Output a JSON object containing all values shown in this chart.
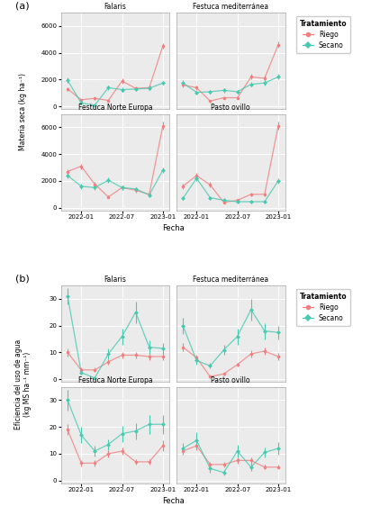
{
  "panel_a": {
    "ylabel": "Materia seca (kg ha⁻¹)",
    "xlabel": "Fecha",
    "subplots": [
      {
        "title": "Falaris",
        "riego_y": [
          1300,
          500,
          600,
          450,
          1900,
          1350,
          1400,
          4500
        ],
        "riego_err": [
          150,
          80,
          100,
          80,
          200,
          150,
          150,
          200
        ],
        "secano_y": [
          1950,
          250,
          100,
          1400,
          1250,
          1300,
          1350,
          1750
        ],
        "secano_err": [
          200,
          100,
          80,
          150,
          150,
          120,
          150,
          150
        ]
      },
      {
        "title": "Festuca mediterránea",
        "riego_y": [
          1600,
          1400,
          400,
          650,
          650,
          2200,
          2100,
          4600
        ],
        "riego_err": [
          200,
          150,
          80,
          100,
          100,
          200,
          200,
          250
        ],
        "secano_y": [
          1750,
          1050,
          1100,
          1200,
          1100,
          1650,
          1750,
          2200
        ],
        "secano_err": [
          180,
          120,
          120,
          150,
          130,
          170,
          180,
          200
        ]
      },
      {
        "title": "Festuca Norte Europa",
        "riego_y": [
          2700,
          3100,
          1750,
          800,
          1500,
          1300,
          1000,
          6100
        ],
        "riego_err": [
          200,
          200,
          150,
          100,
          150,
          150,
          120,
          300
        ],
        "secano_y": [
          2400,
          1600,
          1500,
          2050,
          1500,
          1400,
          950,
          2800
        ],
        "secano_err": [
          200,
          180,
          150,
          200,
          150,
          150,
          120,
          200
        ]
      },
      {
        "title": "Pasto ovillo",
        "riego_y": [
          1600,
          2400,
          1700,
          400,
          550,
          1000,
          1000,
          6100
        ],
        "riego_err": [
          180,
          200,
          200,
          80,
          100,
          150,
          150,
          300
        ],
        "secano_y": [
          700,
          2200,
          750,
          550,
          450,
          450,
          450,
          2000
        ],
        "secano_err": [
          120,
          200,
          130,
          100,
          80,
          80,
          80,
          200
        ]
      }
    ],
    "xtick_labels": [
      "2022-01",
      "2022-07",
      "2023-01"
    ],
    "xtick_positions": [
      1,
      4,
      7
    ],
    "ylim": [
      -200,
      7000
    ],
    "yticks": [
      0,
      2000,
      4000,
      6000
    ]
  },
  "panel_b": {
    "ylabel": "Eficiencia del uso de agua\n(kg MS ha⁻¹ mm⁻¹)",
    "xlabel": "Fecha",
    "subplots": [
      {
        "title": "Falaris",
        "riego_y": [
          10,
          3.5,
          3.5,
          6.5,
          9.0,
          9.0,
          8.5,
          8.5
        ],
        "riego_err": [
          1.5,
          0.8,
          0.8,
          1.0,
          1.2,
          1.2,
          1.2,
          1.2
        ],
        "secano_y": [
          31,
          2.5,
          0.5,
          9.5,
          16,
          25,
          12,
          11.5
        ],
        "secano_err": [
          3,
          0.8,
          0.5,
          2,
          3,
          4,
          2.5,
          2
        ]
      },
      {
        "title": "Festuca mediterránea",
        "riego_y": [
          12,
          8,
          1,
          2,
          5.5,
          9.5,
          10.5,
          8.5
        ],
        "riego_err": [
          1.5,
          1.2,
          0.5,
          0.5,
          0.8,
          1.2,
          1.5,
          1.2
        ],
        "secano_y": [
          20,
          7,
          5,
          11,
          16,
          26,
          18,
          17.5
        ],
        "secano_err": [
          3,
          1.5,
          1,
          2,
          3,
          4,
          3,
          2.5
        ]
      },
      {
        "title": "Festuca Norte Europa",
        "riego_y": [
          19,
          6.5,
          6.5,
          10,
          11,
          7,
          7,
          13
        ],
        "riego_err": [
          2,
          1.2,
          1.2,
          1.5,
          1.5,
          1.0,
          1.0,
          2
        ],
        "secano_y": [
          30,
          17,
          11,
          13.5,
          17.5,
          18.5,
          21,
          21
        ],
        "secano_err": [
          4,
          3,
          2,
          2,
          3,
          3,
          3.5,
          3.5
        ]
      },
      {
        "title": "Pasto ovillo",
        "riego_y": [
          11,
          13,
          6,
          6,
          7.5,
          7.5,
          5,
          5
        ],
        "riego_err": [
          1.5,
          1.5,
          1.0,
          1.0,
          1.2,
          1.2,
          0.8,
          0.8
        ],
        "secano_y": [
          12,
          15,
          4.5,
          3,
          11,
          5,
          10.5,
          12
        ],
        "secano_err": [
          2,
          3,
          1.5,
          1,
          2.5,
          1.5,
          2,
          2.5
        ]
      }
    ],
    "xtick_labels": [
      "2022-01",
      "2022-07",
      "2023-01"
    ],
    "xtick_positions": [
      1,
      4,
      7
    ],
    "ylim": [
      -1,
      35
    ],
    "yticks": [
      0,
      10,
      20,
      30
    ]
  },
  "x_values": [
    0,
    1,
    2,
    3,
    4,
    5,
    6,
    7
  ],
  "riego_color": "#F08080",
  "secano_color": "#48C9B0",
  "plot_bg": "#EBEBEB",
  "grid_color": "#FFFFFF",
  "strip_bg": "#D3D3D3",
  "strip_border": "#B0B0B0",
  "legend_title": "Tratamiento",
  "legend_riego": "Riego",
  "legend_secano": "Secano",
  "panel_label_a": "(a)",
  "panel_label_b": "(b)"
}
